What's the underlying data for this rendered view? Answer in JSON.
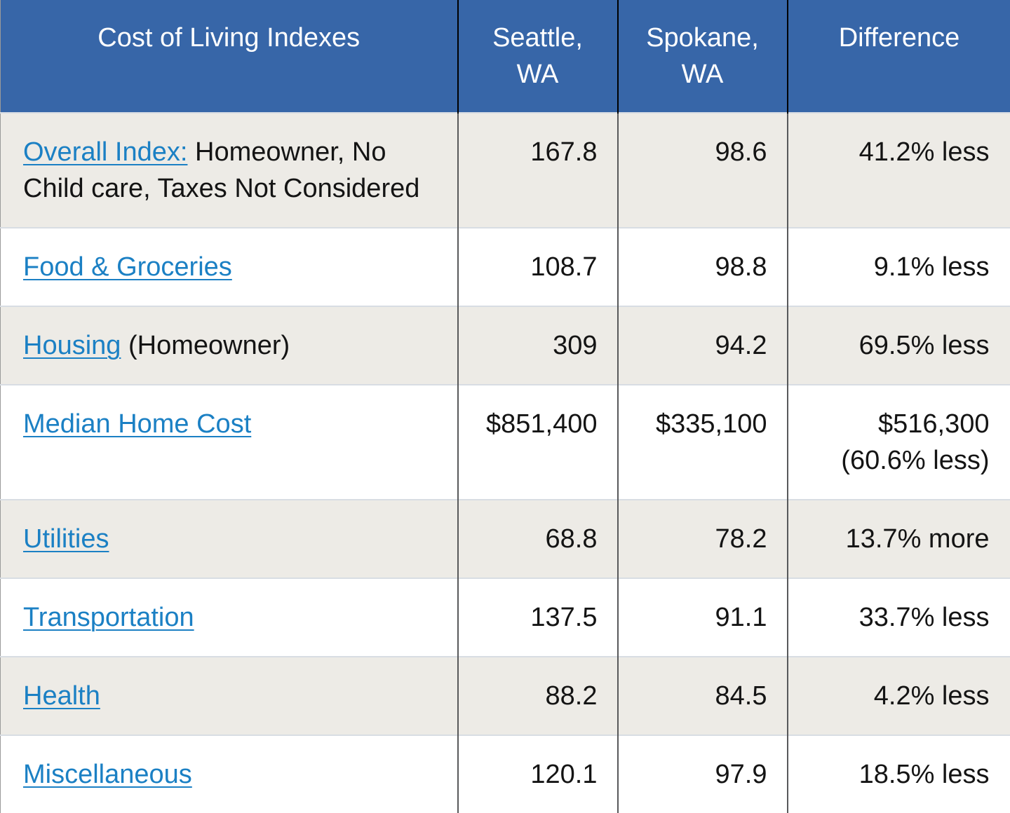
{
  "colors": {
    "header_bg": "#3766a8",
    "header_text": "#ffffff",
    "link": "#1b80c4",
    "row_bg": "#ffffff",
    "row_alt_bg": "#edebe6",
    "text": "#141414",
    "col_divider": "#58595b",
    "col_divider_header": "#000000",
    "row_divider": "#d8dde3"
  },
  "chart_data": {
    "type": "table",
    "title": "Cost of Living Indexes",
    "columns": [
      "Cost of Living Indexes",
      "Seattle, WA",
      "Spokane, WA",
      "Difference"
    ],
    "rows": [
      {
        "label": "Overall Index:",
        "label_suffix": " Homeowner, No Child care, Taxes Not Considered",
        "seattle": "167.8",
        "spokane": "98.6",
        "difference": "41.2% less"
      },
      {
        "label": "Food & Groceries",
        "label_suffix": "",
        "seattle": "108.7",
        "spokane": "98.8",
        "difference": "9.1% less"
      },
      {
        "label": "Housing",
        "label_suffix": " (Homeowner)",
        "seattle": "309",
        "spokane": "94.2",
        "difference": "69.5% less"
      },
      {
        "label": "Median Home Cost",
        "label_suffix": "",
        "seattle": "$851,400",
        "spokane": "$335,100",
        "difference": "$516,300 (60.6% less)"
      },
      {
        "label": "Utilities",
        "label_suffix": "",
        "seattle": "68.8",
        "spokane": "78.2",
        "difference": "13.7% more"
      },
      {
        "label": "Transportation",
        "label_suffix": "",
        "seattle": "137.5",
        "spokane": "91.1",
        "difference": "33.7% less"
      },
      {
        "label": "Health",
        "label_suffix": "",
        "seattle": "88.2",
        "spokane": "84.5",
        "difference": "4.2% less"
      },
      {
        "label": "Miscellaneous",
        "label_suffix": "",
        "seattle": "120.1",
        "spokane": "97.9",
        "difference": "18.5% less"
      }
    ]
  }
}
